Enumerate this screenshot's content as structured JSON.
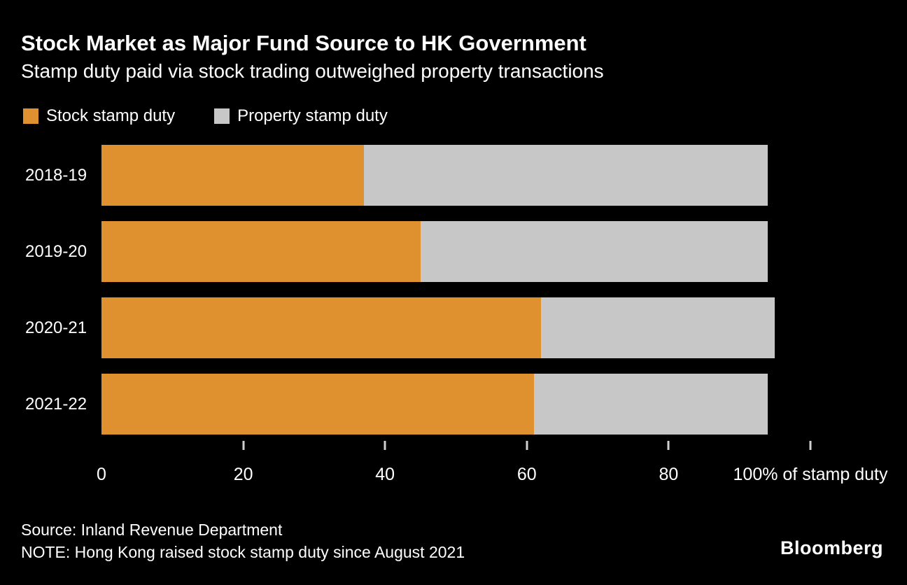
{
  "header": {
    "title": "Stock Market as Major Fund Source to HK Government",
    "subtitle": "Stamp duty paid via stock trading outweighed property transactions"
  },
  "legend": [
    {
      "key": "stock",
      "label": "Stock stamp duty",
      "color": "#E0912F"
    },
    {
      "key": "property",
      "label": "Property stamp duty",
      "color": "#C7C7C7"
    }
  ],
  "chart_data": {
    "type": "bar",
    "orientation": "horizontal",
    "stacked": true,
    "title": "Stock Market as Major Fund Source to HK Government",
    "subtitle": "Stamp duty paid via stock trading outweighed property transactions",
    "categories": [
      "2018-19",
      "2019-20",
      "2020-21",
      "2021-22"
    ],
    "series": [
      {
        "key": "stock",
        "name": "Stock stamp duty",
        "color": "#E0912F",
        "values": [
          37,
          45,
          62,
          61
        ]
      },
      {
        "key": "property",
        "name": "Property stamp duty",
        "color": "#C7C7C7",
        "values": [
          57,
          49,
          33,
          33
        ]
      }
    ],
    "xlabel": "% of stamp duty",
    "ylabel": "",
    "xlim": [
      0,
      100
    ],
    "xticks": [
      0,
      20,
      40,
      60,
      80,
      100
    ],
    "xtick_labels": [
      "0",
      "20",
      "40",
      "60",
      "80",
      "100% of stamp duty"
    ],
    "grid": false,
    "legend_position": "top"
  },
  "footer": {
    "source": "Source: Inland Revenue Department",
    "note": "NOTE: Hong Kong raised stock stamp duty since August 2021",
    "brand": "Bloomberg"
  },
  "colors": {
    "background": "#000000",
    "text": "#FFFFFF",
    "stock_bar": "#E0912F",
    "property_bar": "#C7C7C7"
  }
}
